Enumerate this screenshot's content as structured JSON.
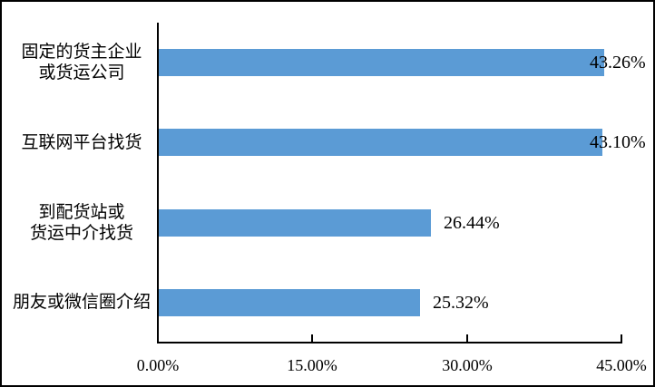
{
  "chart_data": {
    "type": "bar",
    "orientation": "horizontal",
    "title": "",
    "categories": [
      "固定的货主企业\n或货运公司",
      "互联网平台找货",
      "到配货站或\n货运中介找货",
      "朋友或微信圈介绍"
    ],
    "values": [
      43.26,
      43.1,
      26.44,
      25.32
    ],
    "data_labels": [
      "43.26%",
      "43.10%",
      "26.44%",
      "25.32%"
    ],
    "x_tick_labels": [
      "0.00%",
      "15.00%",
      "30.00%",
      "45.00%"
    ],
    "x_tick_values": [
      0,
      15,
      30,
      45
    ],
    "xlim": [
      0,
      45
    ],
    "bar_color": "#5B9BD5",
    "axis_color": "#000000",
    "text_color": "#000000",
    "background_color": "#ffffff",
    "grid": "off",
    "legend": "none"
  }
}
